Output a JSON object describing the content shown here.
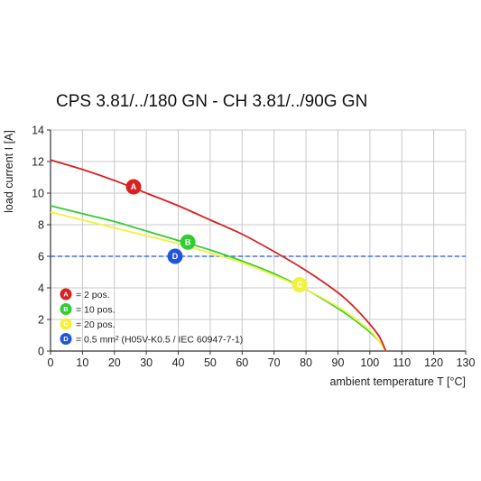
{
  "chart_data": {
    "type": "line",
    "title": "CPS 3.81/../180 GN - CH 3.81/../90G GN",
    "xlabel": "ambient temperature T [°C]",
    "ylabel": "load current I [A]",
    "xlim": [
      0,
      130
    ],
    "ylim": [
      0,
      14
    ],
    "xticks": [
      0,
      10,
      20,
      30,
      40,
      50,
      60,
      70,
      80,
      90,
      100,
      110,
      120,
      130
    ],
    "yticks": [
      0,
      2,
      4,
      6,
      8,
      10,
      12,
      14
    ],
    "grid": true,
    "legend_position": "bottom-left",
    "series": [
      {
        "name": "= 2 pos.",
        "marker": "A",
        "color": "#d62222",
        "marker_at": [
          26,
          10.4
        ],
        "x": [
          0,
          10,
          20,
          30,
          40,
          50,
          60,
          70,
          80,
          90,
          95,
          100,
          103,
          105
        ],
        "y": [
          12.1,
          11.5,
          10.8,
          10.0,
          9.2,
          8.3,
          7.4,
          6.3,
          5.1,
          3.7,
          2.8,
          1.7,
          0.9,
          0
        ]
      },
      {
        "name": "= 10 pos.",
        "marker": "B",
        "color": "#33cc33",
        "marker_at": [
          43,
          6.9
        ],
        "x": [
          0,
          10,
          20,
          30,
          40,
          50,
          60,
          70,
          80,
          90,
          95,
          100,
          103,
          105
        ],
        "y": [
          9.2,
          8.7,
          8.2,
          7.6,
          7.0,
          6.4,
          5.7,
          4.9,
          3.9,
          2.7,
          2.0,
          1.2,
          0.6,
          0
        ]
      },
      {
        "name": "= 20 pos.",
        "marker": "C",
        "color": "#f2f23a",
        "marker_at": [
          78,
          4.2
        ],
        "x": [
          0,
          10,
          20,
          30,
          40,
          50,
          60,
          70,
          80,
          90,
          95,
          100,
          103,
          105
        ],
        "y": [
          8.8,
          8.3,
          7.8,
          7.3,
          6.8,
          6.2,
          5.6,
          4.8,
          3.9,
          2.8,
          2.1,
          1.3,
          0.6,
          0
        ]
      }
    ],
    "reference_line": {
      "name": "= 0.5 mm² (H05V-K0.5 / IEC 60947-7-1)",
      "marker": "D",
      "color": "#2255dd",
      "y": 6,
      "marker_at": [
        39,
        6.0
      ]
    }
  }
}
